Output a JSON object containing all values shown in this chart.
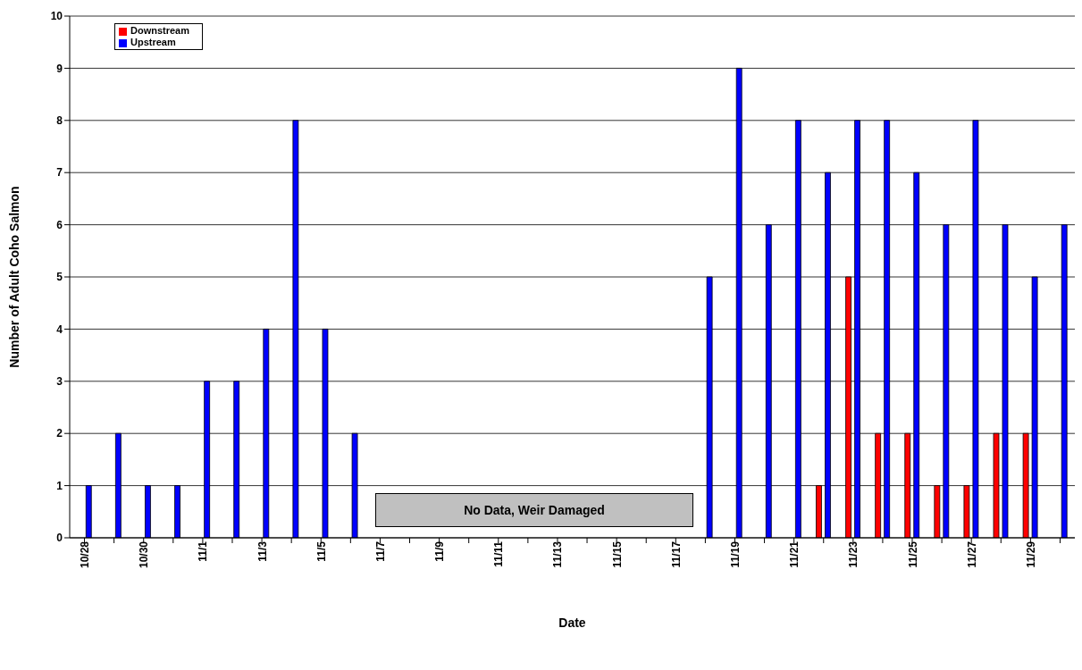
{
  "chart_data": {
    "type": "bar",
    "xlabel": "Date",
    "ylabel": "Number of Adult Coho Salmon",
    "categories": [
      "10/28",
      null,
      "10/30",
      null,
      "11/1",
      null,
      "11/3",
      null,
      "11/5",
      null,
      "11/7",
      null,
      "11/9",
      null,
      "11/11",
      null,
      "11/13",
      null,
      "11/15",
      null,
      "11/17",
      null,
      "11/19",
      null,
      "11/21",
      null,
      "11/23",
      null,
      "11/25",
      null,
      "11/27",
      null,
      "11/29",
      null
    ],
    "series": [
      {
        "name": "Downstream",
        "color": "#ff0000",
        "values": [
          0,
          0,
          0,
          0,
          0,
          0,
          0,
          0,
          0,
          0,
          null,
          null,
          null,
          null,
          null,
          null,
          null,
          null,
          null,
          null,
          null,
          0,
          0,
          0,
          0,
          1,
          5,
          2,
          2,
          1,
          1,
          2,
          2,
          0
        ]
      },
      {
        "name": "Upstream",
        "color": "#0000ff",
        "values": [
          1,
          2,
          1,
          1,
          3,
          3,
          4,
          8,
          4,
          2,
          null,
          null,
          null,
          null,
          null,
          null,
          null,
          null,
          null,
          null,
          null,
          5,
          9,
          6,
          8,
          7,
          8,
          8,
          7,
          6,
          8,
          6,
          5,
          6
        ]
      }
    ],
    "ylim": [
      0,
      10
    ],
    "yticks": [
      0,
      1,
      2,
      3,
      4,
      5,
      6,
      7,
      8,
      9,
      10
    ],
    "grid": "y",
    "legend": "top left",
    "annotations": [
      "No Data, Weir Damaged"
    ]
  }
}
